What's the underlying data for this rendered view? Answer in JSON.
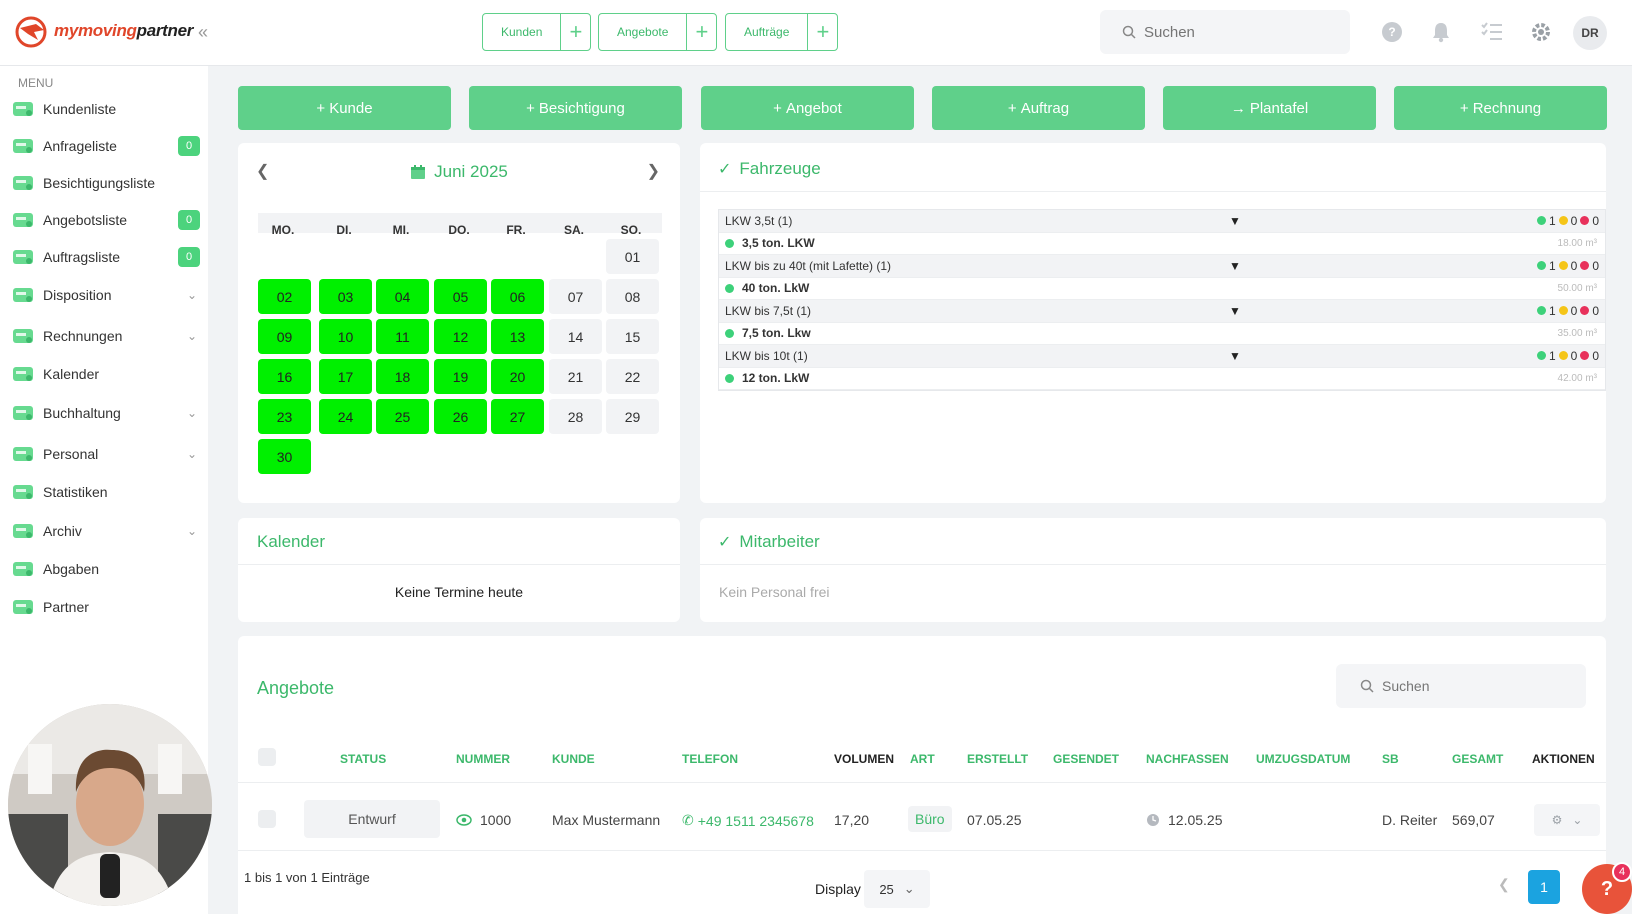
{
  "brand": {
    "logo_text_a": "mymoving",
    "logo_text_b": "partner"
  },
  "topbar": {
    "quick_links": [
      {
        "label": "Kunden"
      },
      {
        "label": "Angebote"
      },
      {
        "label": "Aufträge"
      }
    ],
    "search_placeholder": "Suchen",
    "avatar_initials": "DR"
  },
  "sidebar": {
    "menu_title": "MENU",
    "items": [
      {
        "label": "Kundenliste",
        "icon": "customers-icon"
      },
      {
        "label": "Anfrageliste",
        "icon": "inbox-icon",
        "count": "0"
      },
      {
        "label": "Besichtigungsliste",
        "icon": "house-icon"
      },
      {
        "label": "Angebotsliste",
        "icon": "document-icon",
        "count": "0"
      },
      {
        "label": "Auftragsliste",
        "icon": "clipboard-icon",
        "count": "0"
      },
      {
        "label": "Disposition",
        "icon": "dispatch-icon",
        "chevron": true
      },
      {
        "label": "Rechnungen",
        "icon": "invoice-icon",
        "chevron": true
      },
      {
        "label": "Kalender",
        "icon": "calendar-icon"
      },
      {
        "label": "Buchhaltung",
        "icon": "accounting-icon",
        "chevron": true
      },
      {
        "label": "Personal",
        "icon": "staff-icon",
        "chevron": true
      },
      {
        "label": "Statistiken",
        "icon": "statistics-icon"
      },
      {
        "label": "Archiv",
        "icon": "archive-icon",
        "chevron": true
      },
      {
        "label": "Abgaben",
        "icon": "network-icon"
      },
      {
        "label": "Partner",
        "icon": "handshake-icon"
      }
    ]
  },
  "actions": [
    {
      "label": "Kunde",
      "prefix": "+"
    },
    {
      "label": "Besichtigung",
      "prefix": "+"
    },
    {
      "label": "Angebot",
      "prefix": "+"
    },
    {
      "label": "Auftrag",
      "prefix": "+"
    },
    {
      "label": "Plantafel",
      "prefix": "→"
    },
    {
      "label": "Rechnung",
      "prefix": "+"
    }
  ],
  "calendar": {
    "month_label": "Juni 2025",
    "weekdays": [
      "MO.",
      "DI.",
      "MI.",
      "DO.",
      "FR.",
      "SA.",
      "SO."
    ],
    "weeks": [
      [
        null,
        null,
        null,
        null,
        null,
        null,
        {
          "d": "01",
          "g": false
        }
      ],
      [
        {
          "d": "02",
          "g": true
        },
        {
          "d": "03",
          "g": true
        },
        {
          "d": "04",
          "g": true
        },
        {
          "d": "05",
          "g": true
        },
        {
          "d": "06",
          "g": true
        },
        {
          "d": "07",
          "g": false
        },
        {
          "d": "08",
          "g": false
        }
      ],
      [
        {
          "d": "09",
          "g": true
        },
        {
          "d": "10",
          "g": true
        },
        {
          "d": "11",
          "g": true
        },
        {
          "d": "12",
          "g": true
        },
        {
          "d": "13",
          "g": true
        },
        {
          "d": "14",
          "g": false
        },
        {
          "d": "15",
          "g": false
        }
      ],
      [
        {
          "d": "16",
          "g": true
        },
        {
          "d": "17",
          "g": true
        },
        {
          "d": "18",
          "g": true
        },
        {
          "d": "19",
          "g": true
        },
        {
          "d": "20",
          "g": true
        },
        {
          "d": "21",
          "g": false
        },
        {
          "d": "22",
          "g": false
        }
      ],
      [
        {
          "d": "23",
          "g": true
        },
        {
          "d": "24",
          "g": true
        },
        {
          "d": "25",
          "g": true
        },
        {
          "d": "26",
          "g": true
        },
        {
          "d": "27",
          "g": true
        },
        {
          "d": "28",
          "g": false
        },
        {
          "d": "29",
          "g": false
        }
      ],
      [
        {
          "d": "30",
          "g": true
        },
        null,
        null,
        null,
        null,
        null,
        null
      ]
    ]
  },
  "vehicles": {
    "title": "Fahrzeuge",
    "groups": [
      {
        "label": "LKW 3,5t (1)",
        "green": "1",
        "yellow": "0",
        "red": "0",
        "vehicle": "3,5 ton. LKW",
        "volume": "18.00 m³"
      },
      {
        "label": "LKW bis zu 40t (mit Lafette) (1)",
        "green": "1",
        "yellow": "0",
        "red": "0",
        "vehicle": "40 ton. LkW",
        "volume": "50.00 m³"
      },
      {
        "label": "LKW bis 7,5t (1)",
        "green": "1",
        "yellow": "0",
        "red": "0",
        "vehicle": "7,5 ton. Lkw",
        "volume": "35.00 m³"
      },
      {
        "label": "LKW bis 10t (1)",
        "green": "1",
        "yellow": "0",
        "red": "0",
        "vehicle": "12 ton. LkW",
        "volume": "42.00 m³"
      }
    ],
    "colors": {
      "green": "#3dd17a",
      "yellow": "#f5c518",
      "red": "#e8315b"
    }
  },
  "kalender_card": {
    "title": "Kalender",
    "empty": "Keine Termine heute"
  },
  "mitarbeiter_card": {
    "title": "Mitarbeiter",
    "empty": "Kein Personal frei"
  },
  "angebote": {
    "title": "Angebote",
    "search_placeholder": "Suchen",
    "columns": [
      "STATUS",
      "NUMMER",
      "KUNDE",
      "TELEFON",
      "VOLUMEN",
      "ART",
      "ERSTELLT",
      "GESENDET",
      "NACHFASSEN",
      "UMZUGSDATUM",
      "SB",
      "GESAMT",
      "AKTIONEN"
    ],
    "rows": [
      {
        "status": "Entwurf",
        "nummer": "1000",
        "kunde": "Max Mustermann",
        "telefon": "+49 1511 2345678",
        "volumen": "17,20",
        "art": "Büro",
        "erstellt": "07.05.25",
        "gesendet": "",
        "nachfassen": "12.05.25",
        "umzugsdatum": "",
        "sb": "D. Reiter",
        "gesamt": "569,07"
      }
    ],
    "footer_info": "1 bis 1 von 1 Einträge",
    "display_label": "Display",
    "page_size": "25",
    "current_page": "1",
    "help_badge": "4"
  },
  "accent": "#3cb86b"
}
